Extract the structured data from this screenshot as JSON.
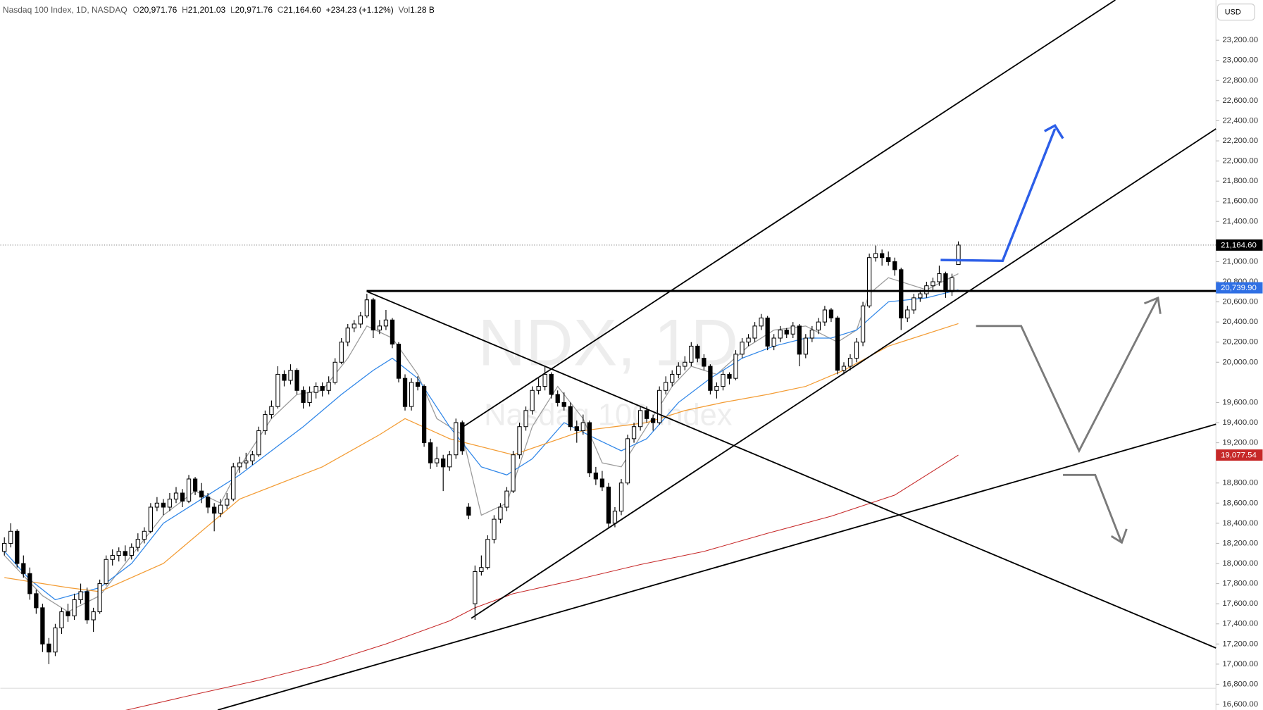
{
  "header": {
    "symbol": "Nasdaq 100 Index, 1D, NASDAQ",
    "ohlc": [
      {
        "key": "O",
        "text": "20,971.76"
      },
      {
        "key": "H",
        "text": "21,201.03"
      },
      {
        "key": "L",
        "text": "20,971.76"
      },
      {
        "key": "C",
        "text": "21,164.60"
      }
    ],
    "change": "+234.23 (+1.12%)",
    "vol_key": "Vol",
    "vol": "1.28 B",
    "currency": "USD"
  },
  "chart_data": {
    "type": "candlestick",
    "watermark": "NDX, 1D",
    "watermark_sub": "Nasdaq 100 Index",
    "ylim": [
      16544,
      23600
    ],
    "yticks": [
      {
        "value": 23200,
        "label": "23,200.00"
      },
      {
        "value": 23000,
        "label": "23,000.00"
      },
      {
        "value": 22800,
        "label": "22,800.00"
      },
      {
        "value": 22600,
        "label": "22,600.00"
      },
      {
        "value": 22400,
        "label": "22,400.00"
      },
      {
        "value": 22200,
        "label": "22,200.00"
      },
      {
        "value": 22000,
        "label": "22,000.00"
      },
      {
        "value": 21800,
        "label": "21,800.00"
      },
      {
        "value": 21600,
        "label": "21,600.00"
      },
      {
        "value": 21400,
        "label": "21,400.00"
      },
      {
        "value": 21000,
        "label": "21,000.00"
      },
      {
        "value": 20800,
        "label": "20,800.00"
      },
      {
        "value": 20600,
        "label": "20,600.00"
      },
      {
        "value": 20400,
        "label": "20,400.00"
      },
      {
        "value": 20200,
        "label": "20,200.00"
      },
      {
        "value": 20000,
        "label": "20,000.00"
      },
      {
        "value": 19600,
        "label": "19,600.00"
      },
      {
        "value": 19400,
        "label": "19,400.00"
      },
      {
        "value": 19200,
        "label": "19,200.00"
      },
      {
        "value": 18800,
        "label": "18,800.00"
      },
      {
        "value": 18600,
        "label": "18,600.00"
      },
      {
        "value": 18400,
        "label": "18,400.00"
      },
      {
        "value": 18200,
        "label": "18,200.00"
      },
      {
        "value": 18000,
        "label": "18,000.00"
      },
      {
        "value": 17800,
        "label": "17,800.00"
      },
      {
        "value": 17600,
        "label": "17,600.00"
      },
      {
        "value": 17400,
        "label": "17,400.00"
      },
      {
        "value": 17200,
        "label": "17,200.00"
      },
      {
        "value": 17000,
        "label": "17,000.00"
      },
      {
        "value": 16800,
        "label": "16,800.00"
      },
      {
        "value": 16600,
        "label": "16,600.00"
      }
    ],
    "up_color": "#ffffff",
    "down_color": "#000000",
    "price_labels": [
      {
        "value": 21164.6,
        "label": "21,164.60",
        "color": "#000000"
      },
      {
        "value": 20739.9,
        "label": "20,739.90",
        "color": "#2f6fe4"
      },
      {
        "value": 19077.54,
        "label": "19,077.54",
        "color": "#c62828"
      }
    ],
    "ma": [
      {
        "color": "#9a9a9a",
        "x": [
          0,
          6,
          10,
          15,
          20,
          25,
          30,
          34,
          37,
          42,
          46,
          50,
          54,
          57,
          61,
          65,
          68,
          72,
          75,
          79,
          83,
          87,
          91,
          94,
          97,
          101,
          105,
          108,
          112,
          117,
          121,
          126,
          131,
          134,
          136,
          139,
          141,
          145,
          150
        ],
        "values": [
          18080,
          17680,
          17520,
          17680,
          18080,
          18480,
          18720,
          18600,
          18960,
          19440,
          19680,
          19720,
          20040,
          20360,
          20240,
          19880,
          19440,
          19280,
          18480,
          18600,
          19360,
          19760,
          19440,
          19000,
          18960,
          19360,
          19760,
          19960,
          19880,
          20160,
          20320,
          20360,
          20200,
          20320,
          20680,
          20840,
          20800,
          20720,
          20880
        ]
      },
      {
        "color": "#2f86e8",
        "x": [
          0,
          4,
          8,
          15,
          20,
          25,
          31,
          37,
          42,
          47,
          53,
          58,
          61,
          65,
          70,
          75,
          79,
          83,
          88,
          93,
          97,
          101,
          106,
          111,
          116,
          121,
          126,
          130,
          134,
          139,
          145,
          150
        ],
        "values": [
          18120,
          17840,
          17640,
          17760,
          18000,
          18400,
          18640,
          18880,
          19120,
          19360,
          19680,
          19920,
          20040,
          19840,
          19360,
          18960,
          18880,
          19040,
          19400,
          19240,
          19120,
          19240,
          19600,
          19840,
          20040,
          20160,
          20240,
          20240,
          20320,
          20600,
          20640,
          20720
        ]
      },
      {
        "color": "#f39c34",
        "x": [
          0,
          10,
          15,
          25,
          37,
          50,
          59,
          63,
          70,
          80,
          91,
          101,
          107,
          113,
          120,
          126,
          132,
          139,
          150
        ],
        "values": [
          17860,
          17760,
          17720,
          18000,
          18640,
          18960,
          19280,
          19440,
          19240,
          19080,
          19320,
          19400,
          19520,
          19600,
          19680,
          19760,
          19920,
          20160,
          20384
        ]
      },
      {
        "color": "#c62828",
        "x": [
          19,
          30,
          40,
          50,
          60,
          70,
          74,
          80,
          90,
          100,
          110,
          120,
          130,
          140,
          150
        ],
        "values": [
          16540,
          16700,
          16840,
          17000,
          17200,
          17430,
          17560,
          17700,
          17840,
          17990,
          18120,
          18300,
          18470,
          18680,
          19077.54
        ]
      }
    ],
    "ohlc": [
      [
        18120,
        18260,
        18080,
        18200
      ],
      [
        18200,
        18400,
        18160,
        18320
      ],
      [
        18320,
        18340,
        17960,
        18000
      ],
      [
        18000,
        18080,
        17860,
        17900
      ],
      [
        17900,
        17960,
        17640,
        17700
      ],
      [
        17700,
        17740,
        17500,
        17560
      ],
      [
        17560,
        17600,
        17120,
        17200
      ],
      [
        17200,
        17260,
        17000,
        17120
      ],
      [
        17120,
        17400,
        17080,
        17360
      ],
      [
        17360,
        17560,
        17300,
        17520
      ],
      [
        17520,
        17600,
        17420,
        17480
      ],
      [
        17480,
        17700,
        17440,
        17640
      ],
      [
        17640,
        17800,
        17600,
        17720
      ],
      [
        17720,
        17760,
        17400,
        17440
      ],
      [
        17440,
        17560,
        17320,
        17520
      ],
      [
        17520,
        17840,
        17500,
        17800
      ],
      [
        17800,
        18080,
        17780,
        18040
      ],
      [
        18040,
        18140,
        17980,
        18080
      ],
      [
        18080,
        18160,
        18020,
        18120
      ],
      [
        18120,
        18180,
        18020,
        18080
      ],
      [
        18080,
        18200,
        18040,
        18160
      ],
      [
        18160,
        18300,
        18120,
        18240
      ],
      [
        18240,
        18360,
        18200,
        18320
      ],
      [
        18320,
        18600,
        18300,
        18560
      ],
      [
        18560,
        18660,
        18520,
        18600
      ],
      [
        18600,
        18640,
        18480,
        18560
      ],
      [
        18560,
        18700,
        18520,
        18640
      ],
      [
        18640,
        18760,
        18600,
        18700
      ],
      [
        18700,
        18740,
        18560,
        18620
      ],
      [
        18620,
        18880,
        18600,
        18840
      ],
      [
        18840,
        18860,
        18680,
        18720
      ],
      [
        18720,
        18800,
        18600,
        18660
      ],
      [
        18660,
        18700,
        18500,
        18560
      ],
      [
        18560,
        18600,
        18320,
        18500
      ],
      [
        18500,
        18640,
        18460,
        18580
      ],
      [
        18580,
        18700,
        18540,
        18640
      ],
      [
        18640,
        19000,
        18620,
        18960
      ],
      [
        18960,
        19060,
        18900,
        19000
      ],
      [
        19000,
        19100,
        18940,
        19020
      ],
      [
        19020,
        19120,
        18980,
        19080
      ],
      [
        19080,
        19360,
        19060,
        19320
      ],
      [
        19320,
        19520,
        19280,
        19480
      ],
      [
        19480,
        19620,
        19440,
        19560
      ],
      [
        19560,
        19960,
        19540,
        19880
      ],
      [
        19880,
        19920,
        19760,
        19820
      ],
      [
        19820,
        19980,
        19780,
        19920
      ],
      [
        19920,
        19940,
        19680,
        19720
      ],
      [
        19720,
        19760,
        19540,
        19600
      ],
      [
        19600,
        19760,
        19560,
        19700
      ],
      [
        19700,
        19800,
        19640,
        19760
      ],
      [
        19760,
        19800,
        19660,
        19720
      ],
      [
        19720,
        19860,
        19680,
        19800
      ],
      [
        19800,
        20040,
        19780,
        20000
      ],
      [
        20000,
        20240,
        19980,
        20200
      ],
      [
        20200,
        20380,
        20160,
        20340
      ],
      [
        20340,
        20420,
        20300,
        20380
      ],
      [
        20380,
        20500,
        20340,
        20460
      ],
      [
        20460,
        20680,
        20440,
        20620
      ],
      [
        20620,
        20640,
        20240,
        20320
      ],
      [
        20320,
        20420,
        20280,
        20360
      ],
      [
        20360,
        20520,
        20320,
        20420
      ],
      [
        20420,
        20440,
        20140,
        20180
      ],
      [
        20180,
        20200,
        19800,
        19840
      ],
      [
        19840,
        19880,
        19520,
        19560
      ],
      [
        19560,
        19840,
        19520,
        19800
      ],
      [
        19800,
        19860,
        19720,
        19760
      ],
      [
        19760,
        19780,
        19160,
        19200
      ],
      [
        19200,
        19240,
        18940,
        19000
      ],
      [
        19000,
        19160,
        18960,
        19040
      ],
      [
        19040,
        19080,
        18720,
        18960
      ],
      [
        18960,
        19120,
        18920,
        19080
      ],
      [
        19080,
        19440,
        19040,
        19400
      ],
      [
        19400,
        19420,
        19080,
        19120
      ],
      [
        18560,
        18600,
        18440,
        18480
      ],
      [
        17600,
        17980,
        17440,
        17920
      ],
      [
        17920,
        18080,
        17880,
        17960
      ],
      [
        17960,
        18280,
        17940,
        18240
      ],
      [
        18240,
        18480,
        18200,
        18440
      ],
      [
        18440,
        18600,
        18400,
        18560
      ],
      [
        18560,
        18760,
        18520,
        18720
      ],
      [
        18720,
        19120,
        18700,
        19080
      ],
      [
        19080,
        19400,
        19040,
        19360
      ],
      [
        19360,
        19560,
        19320,
        19520
      ],
      [
        19520,
        19760,
        19480,
        19720
      ],
      [
        19720,
        19840,
        19680,
        19760
      ],
      [
        19760,
        19960,
        19720,
        19880
      ],
      [
        19880,
        19900,
        19640,
        19680
      ],
      [
        19680,
        19720,
        19560,
        19600
      ],
      [
        19600,
        19700,
        19520,
        19560
      ],
      [
        19560,
        19600,
        19320,
        19360
      ],
      [
        19360,
        19420,
        19200,
        19320
      ],
      [
        19320,
        19480,
        19280,
        19400
      ],
      [
        19400,
        19420,
        18860,
        18900
      ],
      [
        18900,
        18960,
        18780,
        18840
      ],
      [
        18840,
        18920,
        18720,
        18760
      ],
      [
        18760,
        18800,
        18360,
        18400
      ],
      [
        18400,
        18560,
        18360,
        18520
      ],
      [
        18520,
        18840,
        18480,
        18800
      ],
      [
        18800,
        19280,
        18780,
        19240
      ],
      [
        19240,
        19400,
        19200,
        19360
      ],
      [
        19360,
        19560,
        19320,
        19520
      ],
      [
        19520,
        19560,
        19400,
        19440
      ],
      [
        19440,
        19480,
        19320,
        19400
      ],
      [
        19400,
        19760,
        19380,
        19720
      ],
      [
        19720,
        19860,
        19680,
        19800
      ],
      [
        19800,
        19920,
        19760,
        19880
      ],
      [
        19880,
        20000,
        19840,
        19960
      ],
      [
        19960,
        20060,
        19920,
        20000
      ],
      [
        20000,
        20200,
        19960,
        20160
      ],
      [
        20160,
        20180,
        20000,
        20040
      ],
      [
        20040,
        20080,
        19920,
        19960
      ],
      [
        19960,
        19980,
        19680,
        19720
      ],
      [
        19720,
        19800,
        19640,
        19760
      ],
      [
        19760,
        19920,
        19720,
        19880
      ],
      [
        19880,
        19900,
        19780,
        19840
      ],
      [
        19840,
        20120,
        19820,
        20080
      ],
      [
        20080,
        20240,
        20040,
        20200
      ],
      [
        20200,
        20280,
        20160,
        20240
      ],
      [
        20240,
        20400,
        20200,
        20360
      ],
      [
        20360,
        20480,
        20320,
        20440
      ],
      [
        20440,
        20460,
        20120,
        20160
      ],
      [
        20160,
        20280,
        20120,
        20240
      ],
      [
        20240,
        20360,
        20200,
        20320
      ],
      [
        20320,
        20340,
        20240,
        20280
      ],
      [
        20280,
        20400,
        20240,
        20360
      ],
      [
        20360,
        20380,
        19960,
        20080
      ],
      [
        20080,
        20280,
        20040,
        20240
      ],
      [
        20240,
        20360,
        20200,
        20320
      ],
      [
        20320,
        20440,
        20280,
        20400
      ],
      [
        20400,
        20560,
        20360,
        20520
      ],
      [
        20520,
        20540,
        20400,
        20440
      ],
      [
        20440,
        20460,
        19880,
        19920
      ],
      [
        19920,
        20000,
        19880,
        19960
      ],
      [
        19960,
        20080,
        19920,
        20040
      ],
      [
        20040,
        20240,
        20000,
        20200
      ],
      [
        20200,
        20600,
        20160,
        20560
      ],
      [
        20560,
        21080,
        20540,
        21040
      ],
      [
        21040,
        21160,
        21000,
        21080
      ],
      [
        21080,
        21120,
        20960,
        21040
      ],
      [
        21040,
        21100,
        20960,
        21000
      ],
      [
        21000,
        21040,
        20860,
        20920
      ],
      [
        20920,
        20940,
        20320,
        20440
      ],
      [
        20440,
        20560,
        20400,
        20520
      ],
      [
        20520,
        20680,
        20480,
        20640
      ],
      [
        20640,
        20720,
        20600,
        20680
      ],
      [
        20680,
        20800,
        20640,
        20760
      ],
      [
        20760,
        20840,
        20700,
        20800
      ],
      [
        20800,
        20960,
        20760,
        20880
      ],
      [
        20880,
        20900,
        20640,
        20700
      ],
      [
        20700,
        20880,
        20660,
        20840
      ],
      [
        20971.76,
        21201.03,
        20971.76,
        21164.6
      ]
    ]
  }
}
